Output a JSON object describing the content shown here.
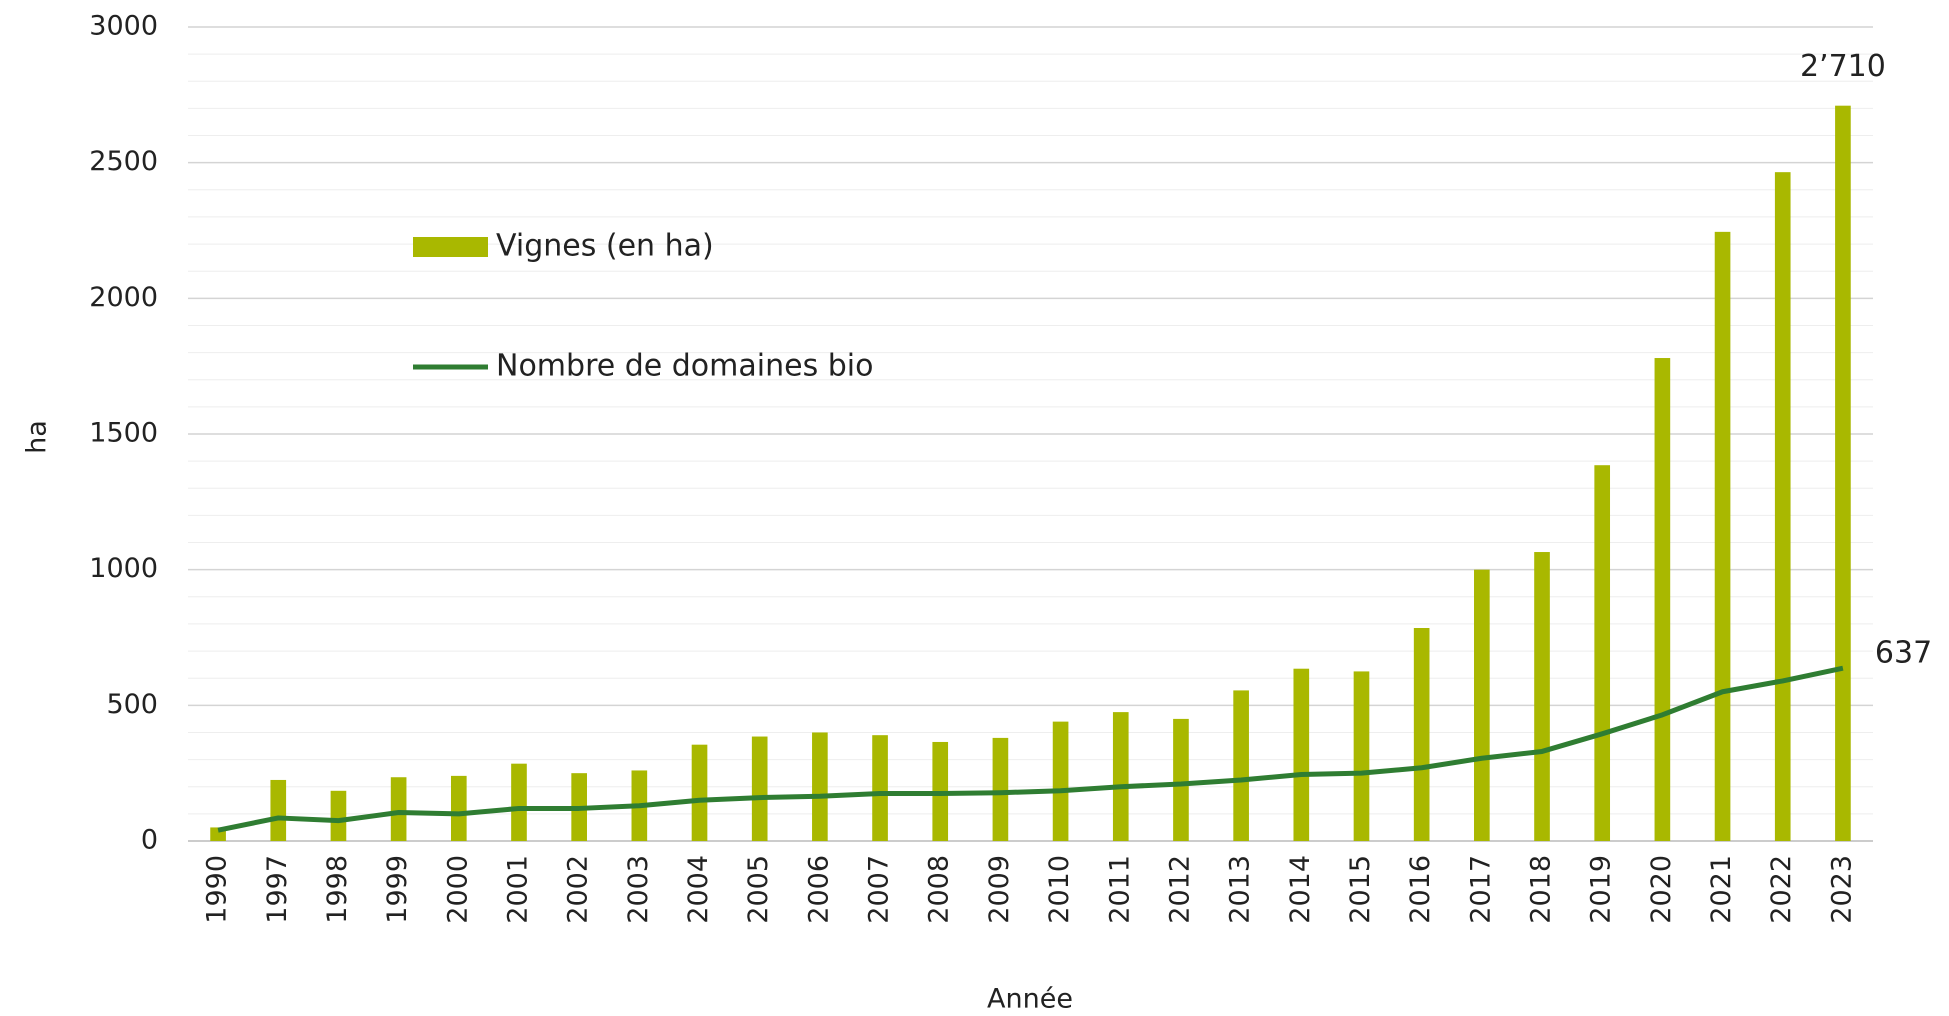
{
  "chart_data": {
    "type": "bar-line",
    "x_label": "Année",
    "y_label": "ha",
    "categories": [
      "1990",
      "1997",
      "1998",
      "1999",
      "2000",
      "2001",
      "2002",
      "2003",
      "2004",
      "2005",
      "2006",
      "2007",
      "2008",
      "2009",
      "2010",
      "2011",
      "2012",
      "2013",
      "2014",
      "2015",
      "2016",
      "2017",
      "2018",
      "2019",
      "2020",
      "2021",
      "2022",
      "2023"
    ],
    "series": [
      {
        "name": "Vignes (en ha)",
        "type": "bar",
        "color": "#a9b800",
        "values": [
          50,
          225,
          185,
          235,
          240,
          285,
          250,
          260,
          355,
          385,
          400,
          390,
          365,
          380,
          440,
          475,
          450,
          555,
          635,
          625,
          785,
          1000,
          1065,
          1385,
          1780,
          2245,
          2465,
          2710
        ],
        "value_labels": [
          null,
          null,
          null,
          null,
          null,
          null,
          null,
          null,
          null,
          null,
          null,
          null,
          null,
          null,
          null,
          null,
          null,
          null,
          null,
          null,
          null,
          null,
          null,
          null,
          null,
          null,
          null,
          "2’710"
        ]
      },
      {
        "name": "Nombre de domaines bio",
        "type": "line",
        "color": "#2f7d32",
        "values": [
          40,
          85,
          75,
          105,
          100,
          120,
          120,
          130,
          150,
          160,
          165,
          175,
          175,
          178,
          185,
          200,
          210,
          225,
          245,
          250,
          270,
          305,
          330,
          395,
          465,
          550,
          590,
          637
        ],
        "value_labels": [
          null,
          null,
          null,
          null,
          null,
          null,
          null,
          null,
          null,
          null,
          null,
          null,
          null,
          null,
          null,
          null,
          null,
          null,
          null,
          null,
          null,
          null,
          null,
          null,
          null,
          null,
          null,
          "637"
        ]
      }
    ],
    "ylim": [
      0,
      3000
    ],
    "yticks": [
      0,
      500,
      1000,
      1500,
      2000,
      2500,
      3000
    ],
    "grid": true,
    "minor_grid": true
  }
}
